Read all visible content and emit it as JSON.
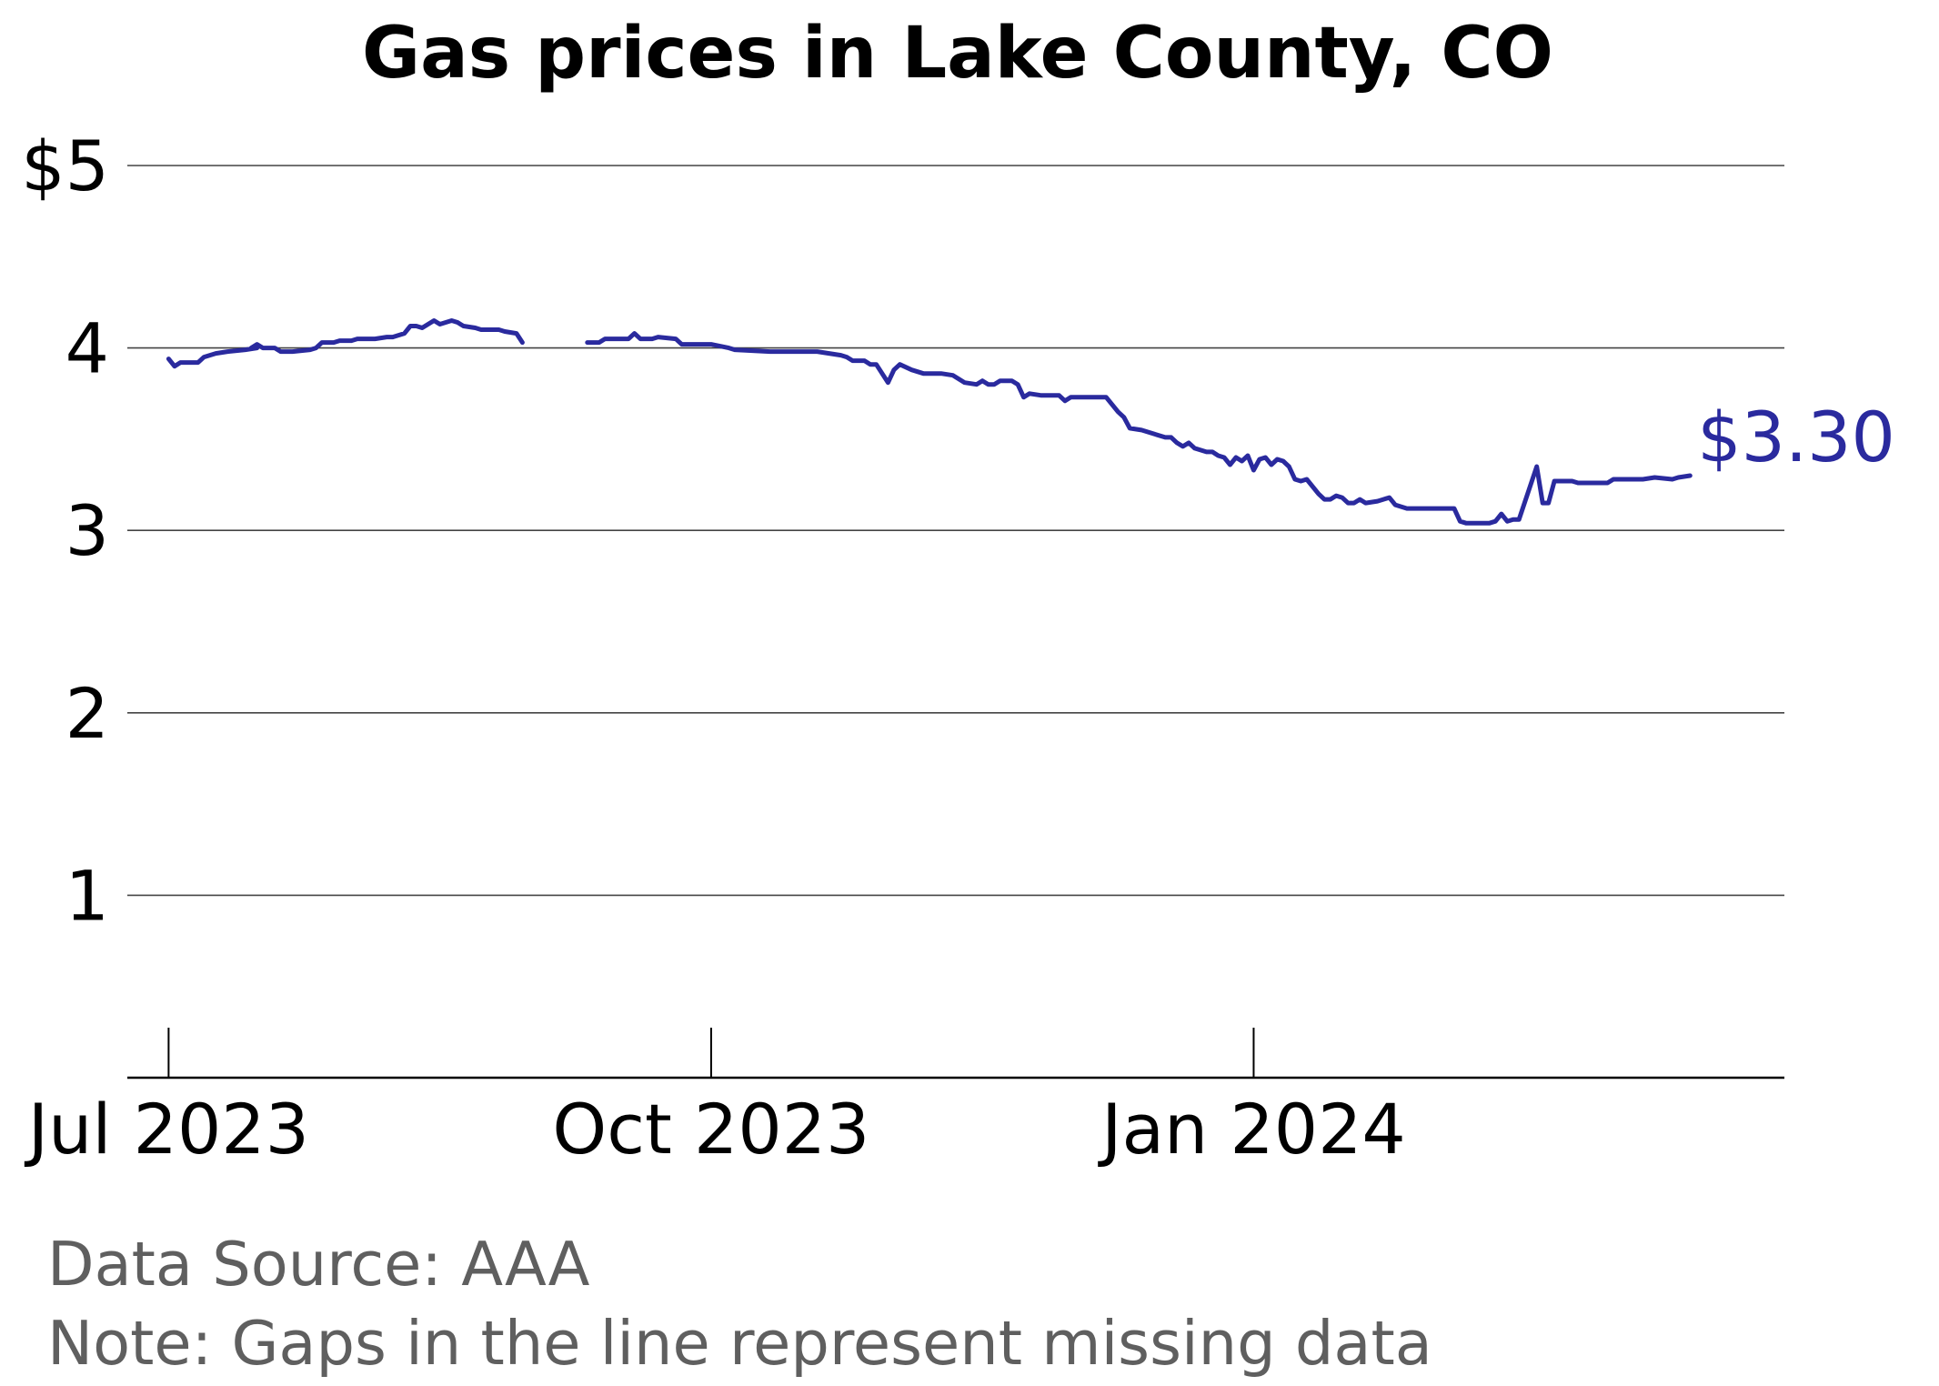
{
  "chart_data": {
    "type": "line",
    "title": "Gas prices in Lake County, CO",
    "xlabel": "",
    "ylabel": "",
    "x_range": [
      "2023-06-24",
      "2024-03-31"
    ],
    "ylim": [
      0,
      5
    ],
    "y_ticks": [
      {
        "value": 1,
        "label": "1"
      },
      {
        "value": 2,
        "label": "2"
      },
      {
        "value": 3,
        "label": "3"
      },
      {
        "value": 4,
        "label": "4"
      },
      {
        "value": 5,
        "label": "$5"
      }
    ],
    "x_ticks": [
      {
        "date": "2023-07-01",
        "label": "Jul 2023"
      },
      {
        "date": "2023-10-01",
        "label": "Oct 2023"
      },
      {
        "date": "2024-01-01",
        "label": "Jan 2024"
      }
    ],
    "grid": "horizontal",
    "line_color": "#2a2a9e",
    "end_label": "$3.30",
    "series": [
      {
        "segments": [
          [
            [
              "2023-07-01",
              3.94
            ],
            [
              "2023-07-02",
              3.9
            ],
            [
              "2023-07-03",
              3.92
            ],
            [
              "2023-07-06",
              3.92
            ],
            [
              "2023-07-07",
              3.95
            ],
            [
              "2023-07-09",
              3.97
            ],
            [
              "2023-07-11",
              3.98
            ],
            [
              "2023-07-14",
              3.99
            ],
            [
              "2023-07-16",
              4.0
            ],
            [
              "2023-07-15",
              4.0
            ],
            [
              "2023-07-16",
              4.02
            ],
            [
              "2023-07-17",
              4.0
            ],
            [
              "2023-07-19",
              4.0
            ],
            [
              "2023-07-20",
              3.98
            ],
            [
              "2023-07-22",
              3.98
            ],
            [
              "2023-07-25",
              3.99
            ],
            [
              "2023-07-26",
              4.0
            ],
            [
              "2023-07-27",
              4.03
            ],
            [
              "2023-07-29",
              4.03
            ],
            [
              "2023-07-30",
              4.04
            ],
            [
              "2023-08-01",
              4.04
            ],
            [
              "2023-08-02",
              4.05
            ],
            [
              "2023-08-05",
              4.05
            ],
            [
              "2023-08-07",
              4.06
            ],
            [
              "2023-08-08",
              4.06
            ],
            [
              "2023-08-10",
              4.08
            ],
            [
              "2023-08-11",
              4.12
            ],
            [
              "2023-08-12",
              4.12
            ],
            [
              "2023-08-13",
              4.11
            ],
            [
              "2023-08-15",
              4.15
            ],
            [
              "2023-08-16",
              4.13
            ],
            [
              "2023-08-18",
              4.15
            ],
            [
              "2023-08-19",
              4.14
            ],
            [
              "2023-08-20",
              4.12
            ],
            [
              "2023-08-22",
              4.11
            ],
            [
              "2023-08-23",
              4.1
            ],
            [
              "2023-08-26",
              4.1
            ],
            [
              "2023-08-27",
              4.09
            ],
            [
              "2023-08-29",
              4.08
            ],
            [
              "2023-08-30",
              4.03
            ]
          ],
          [
            [
              "2023-09-10",
              4.03
            ],
            [
              "2023-09-12",
              4.03
            ],
            [
              "2023-09-13",
              4.05
            ],
            [
              "2023-09-17",
              4.05
            ],
            [
              "2023-09-18",
              4.08
            ],
            [
              "2023-09-19",
              4.05
            ],
            [
              "2023-09-21",
              4.05
            ],
            [
              "2023-09-22",
              4.06
            ],
            [
              "2023-09-25",
              4.05
            ],
            [
              "2023-09-26",
              4.02
            ],
            [
              "2023-10-01",
              4.02
            ],
            [
              "2023-10-04",
              4.0
            ],
            [
              "2023-10-05",
              3.99
            ],
            [
              "2023-10-11",
              3.98
            ],
            [
              "2023-10-12",
              3.98
            ],
            [
              "2023-10-19",
              3.98
            ],
            [
              "2023-10-21",
              3.97
            ],
            [
              "2023-10-23",
              3.96
            ],
            [
              "2023-10-24",
              3.95
            ],
            [
              "2023-10-25",
              3.93
            ],
            [
              "2023-10-27",
              3.93
            ],
            [
              "2023-10-28",
              3.91
            ],
            [
              "2023-10-29",
              3.91
            ],
            [
              "2023-10-31",
              3.81
            ],
            [
              "2023-11-01",
              3.88
            ],
            [
              "2023-11-02",
              3.91
            ],
            [
              "2023-11-04",
              3.88
            ],
            [
              "2023-11-06",
              3.86
            ],
            [
              "2023-11-09",
              3.86
            ],
            [
              "2023-11-11",
              3.85
            ],
            [
              "2023-11-13",
              3.81
            ],
            [
              "2023-11-15",
              3.8
            ],
            [
              "2023-11-16",
              3.82
            ],
            [
              "2023-11-17",
              3.8
            ],
            [
              "2023-11-18",
              3.8
            ],
            [
              "2023-11-19",
              3.82
            ],
            [
              "2023-11-21",
              3.82
            ],
            [
              "2023-11-22",
              3.8
            ],
            [
              "2023-11-23",
              3.73
            ],
            [
              "2023-11-24",
              3.75
            ],
            [
              "2023-11-26",
              3.74
            ],
            [
              "2023-11-29",
              3.74
            ],
            [
              "2023-11-30",
              3.71
            ],
            [
              "2023-12-01",
              3.73
            ],
            [
              "2023-12-07",
              3.73
            ],
            [
              "2023-12-09",
              3.65
            ],
            [
              "2023-12-10",
              3.62
            ],
            [
              "2023-12-11",
              3.56
            ],
            [
              "2023-12-13",
              3.55
            ],
            [
              "2023-12-15",
              3.53
            ],
            [
              "2023-12-17",
              3.51
            ],
            [
              "2023-12-18",
              3.51
            ],
            [
              "2023-12-19",
              3.48
            ],
            [
              "2023-12-20",
              3.46
            ],
            [
              "2023-12-21",
              3.48
            ],
            [
              "2023-12-22",
              3.45
            ],
            [
              "2023-12-24",
              3.43
            ],
            [
              "2023-12-25",
              3.43
            ],
            [
              "2023-12-26",
              3.41
            ],
            [
              "2023-12-27",
              3.4
            ],
            [
              "2023-12-28",
              3.36
            ],
            [
              "2023-12-29",
              3.4
            ],
            [
              "2023-12-30",
              3.38
            ],
            [
              "2023-12-31",
              3.41
            ],
            [
              "2024-01-01",
              3.33
            ],
            [
              "2024-01-02",
              3.39
            ],
            [
              "2024-01-03",
              3.4
            ],
            [
              "2024-01-04",
              3.36
            ],
            [
              "2024-01-05",
              3.39
            ],
            [
              "2024-01-06",
              3.38
            ],
            [
              "2024-01-07",
              3.35
            ],
            [
              "2024-01-08",
              3.28
            ],
            [
              "2024-01-09",
              3.27
            ],
            [
              "2024-01-10",
              3.28
            ],
            [
              "2024-01-12",
              3.2
            ],
            [
              "2024-01-13",
              3.17
            ],
            [
              "2024-01-14",
              3.17
            ],
            [
              "2024-01-15",
              3.19
            ],
            [
              "2024-01-16",
              3.18
            ],
            [
              "2024-01-17",
              3.15
            ],
            [
              "2024-01-18",
              3.15
            ],
            [
              "2024-01-19",
              3.17
            ],
            [
              "2024-01-20",
              3.15
            ],
            [
              "2024-01-22",
              3.16
            ],
            [
              "2024-01-23",
              3.17
            ],
            [
              "2024-01-24",
              3.18
            ],
            [
              "2024-01-25",
              3.14
            ],
            [
              "2024-01-27",
              3.12
            ],
            [
              "2024-02-02",
              3.12
            ],
            [
              "2024-02-04",
              3.12
            ],
            [
              "2024-02-05",
              3.05
            ],
            [
              "2024-02-06",
              3.04
            ],
            [
              "2024-02-10",
              3.04
            ],
            [
              "2024-02-11",
              3.05
            ],
            [
              "2024-02-12",
              3.09
            ],
            [
              "2024-02-13",
              3.05
            ],
            [
              "2024-02-14",
              3.06
            ],
            [
              "2024-02-15",
              3.06
            ],
            [
              "2024-02-18",
              3.35
            ],
            [
              "2024-02-19",
              3.15
            ],
            [
              "2024-02-20",
              3.15
            ],
            [
              "2024-02-21",
              3.27
            ],
            [
              "2024-02-24",
              3.27
            ],
            [
              "2024-02-25",
              3.26
            ],
            [
              "2024-03-01",
              3.26
            ],
            [
              "2024-03-02",
              3.28
            ],
            [
              "2024-03-07",
              3.28
            ],
            [
              "2024-03-09",
              3.29
            ],
            [
              "2024-03-12",
              3.28
            ],
            [
              "2024-03-13",
              3.29
            ],
            [
              "2024-03-15",
              3.3
            ]
          ]
        ]
      }
    ]
  },
  "notes": {
    "source": "Data Source: AAA",
    "note": "Note: Gaps in the line represent missing data"
  }
}
